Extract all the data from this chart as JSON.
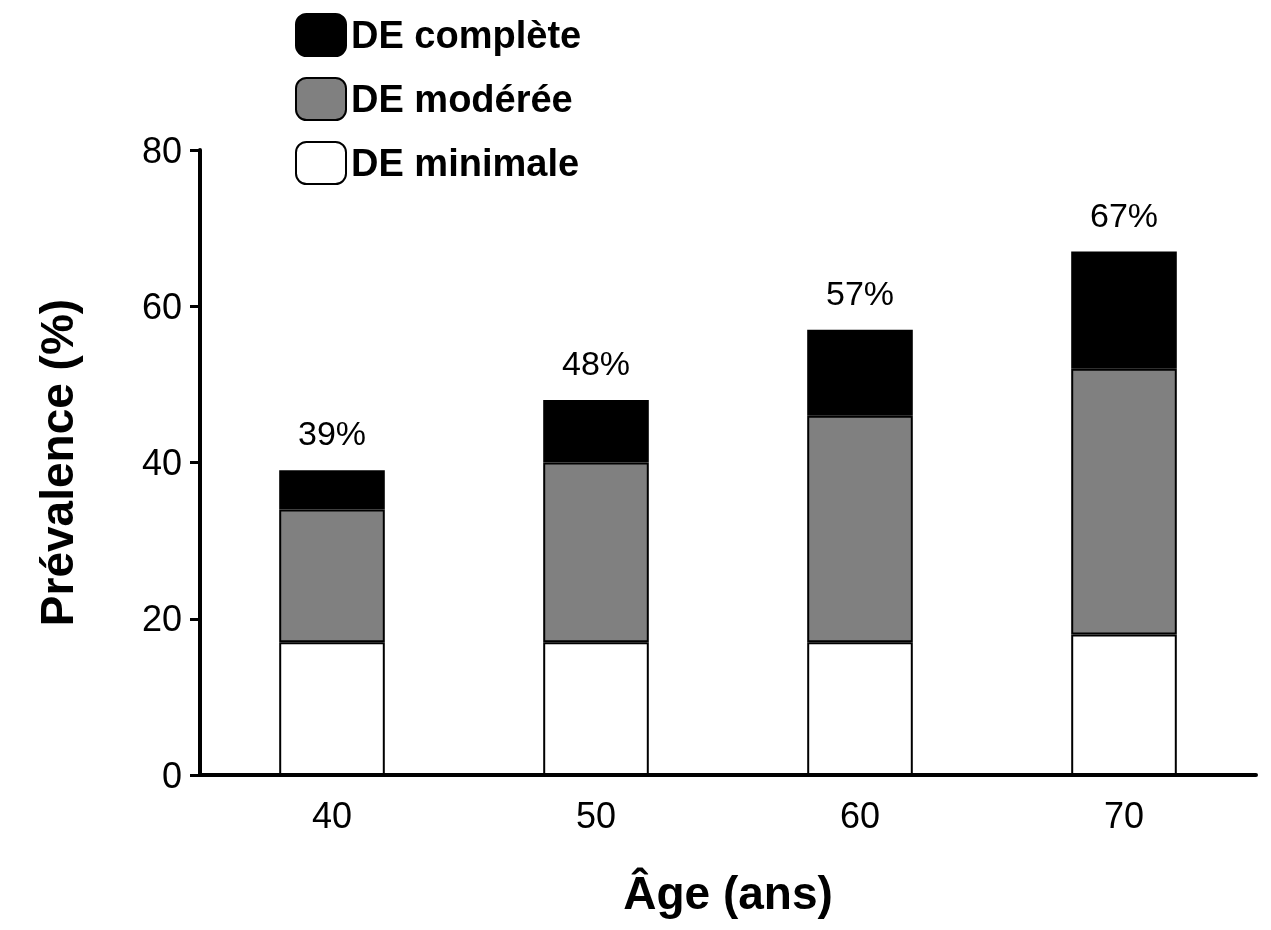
{
  "chart_data": {
    "type": "bar",
    "stacked": true,
    "xlabel": "Âge (ans)",
    "ylabel": "Prévalence (%)",
    "categories": [
      "40",
      "50",
      "60",
      "70"
    ],
    "series": [
      {
        "name": "DE minimale",
        "color": "#ffffff",
        "values": [
          17,
          17,
          17,
          18
        ]
      },
      {
        "name": "DE modérée",
        "color": "#808080",
        "values": [
          17,
          23,
          29,
          34
        ]
      },
      {
        "name": "DE complète",
        "color": "#000000",
        "values": [
          5,
          8,
          11,
          15
        ]
      }
    ],
    "totals": [
      "39%",
      "48%",
      "57%",
      "67%"
    ],
    "ylim": [
      0,
      80
    ],
    "yticks": [
      0,
      20,
      40,
      60,
      80
    ],
    "grid": false,
    "legend": "top left"
  }
}
